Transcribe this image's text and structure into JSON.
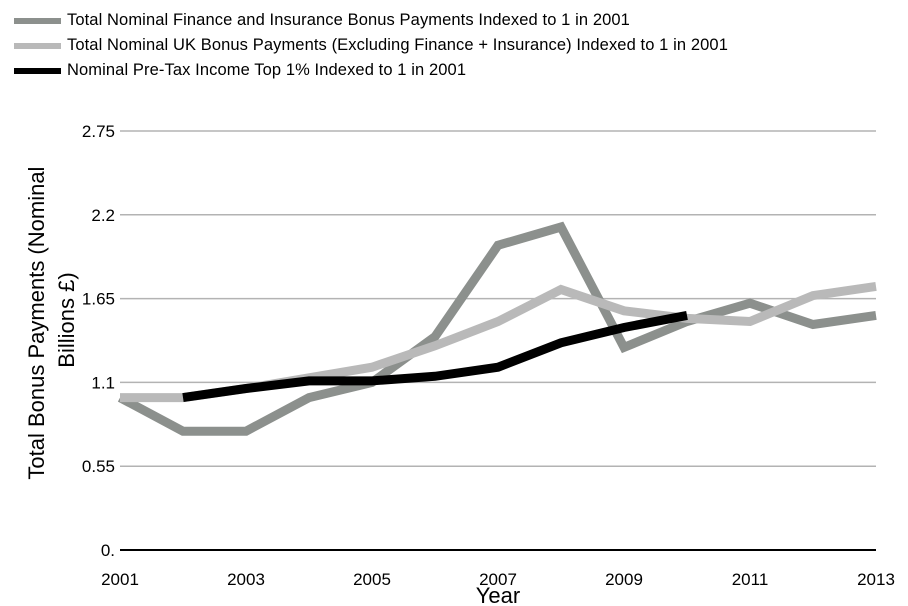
{
  "chart_data": {
    "type": "line",
    "title": "",
    "xlabel": "Year",
    "ylabel_lines": [
      "Total Bonus Payments (Nominal",
      "Billions £)"
    ],
    "x": [
      2001,
      2002,
      2003,
      2004,
      2005,
      2006,
      2007,
      2008,
      2009,
      2010,
      2011,
      2012,
      2013
    ],
    "x_ticks": [
      "2001",
      "2003",
      "2005",
      "2007",
      "2009",
      "2011",
      "2013"
    ],
    "y_ticks": [
      "0.",
      "0.55",
      "1.1",
      "1.65",
      "2.2",
      "2.75"
    ],
    "ylim": [
      0,
      2.75
    ],
    "grid": true,
    "legend_position": "top",
    "series": [
      {
        "name": "Total Nominal Finance and Insurance Bonus Payments Indexed to 1 in 2001",
        "color": "#8c908d",
        "values": [
          1.0,
          0.78,
          0.78,
          1.0,
          1.1,
          1.4,
          2.0,
          2.12,
          1.33,
          1.5,
          1.62,
          1.48,
          1.54
        ]
      },
      {
        "name": "Total Nominal UK Bonus Payments (Excluding Finance + Insurance) Indexed to 1 in 2001",
        "color": "#b9b9b9",
        "values": [
          1.0,
          1.0,
          1.06,
          1.13,
          1.2,
          1.34,
          1.5,
          1.71,
          1.57,
          1.52,
          1.5,
          1.67,
          1.73
        ]
      },
      {
        "name": "Nominal Pre-Tax Income Top 1% Indexed to 1 in 2001",
        "color": "#000000",
        "values": [
          null,
          1.0,
          1.06,
          1.11,
          1.11,
          1.14,
          1.2,
          1.36,
          1.46,
          1.54,
          null,
          null,
          null
        ]
      }
    ]
  }
}
